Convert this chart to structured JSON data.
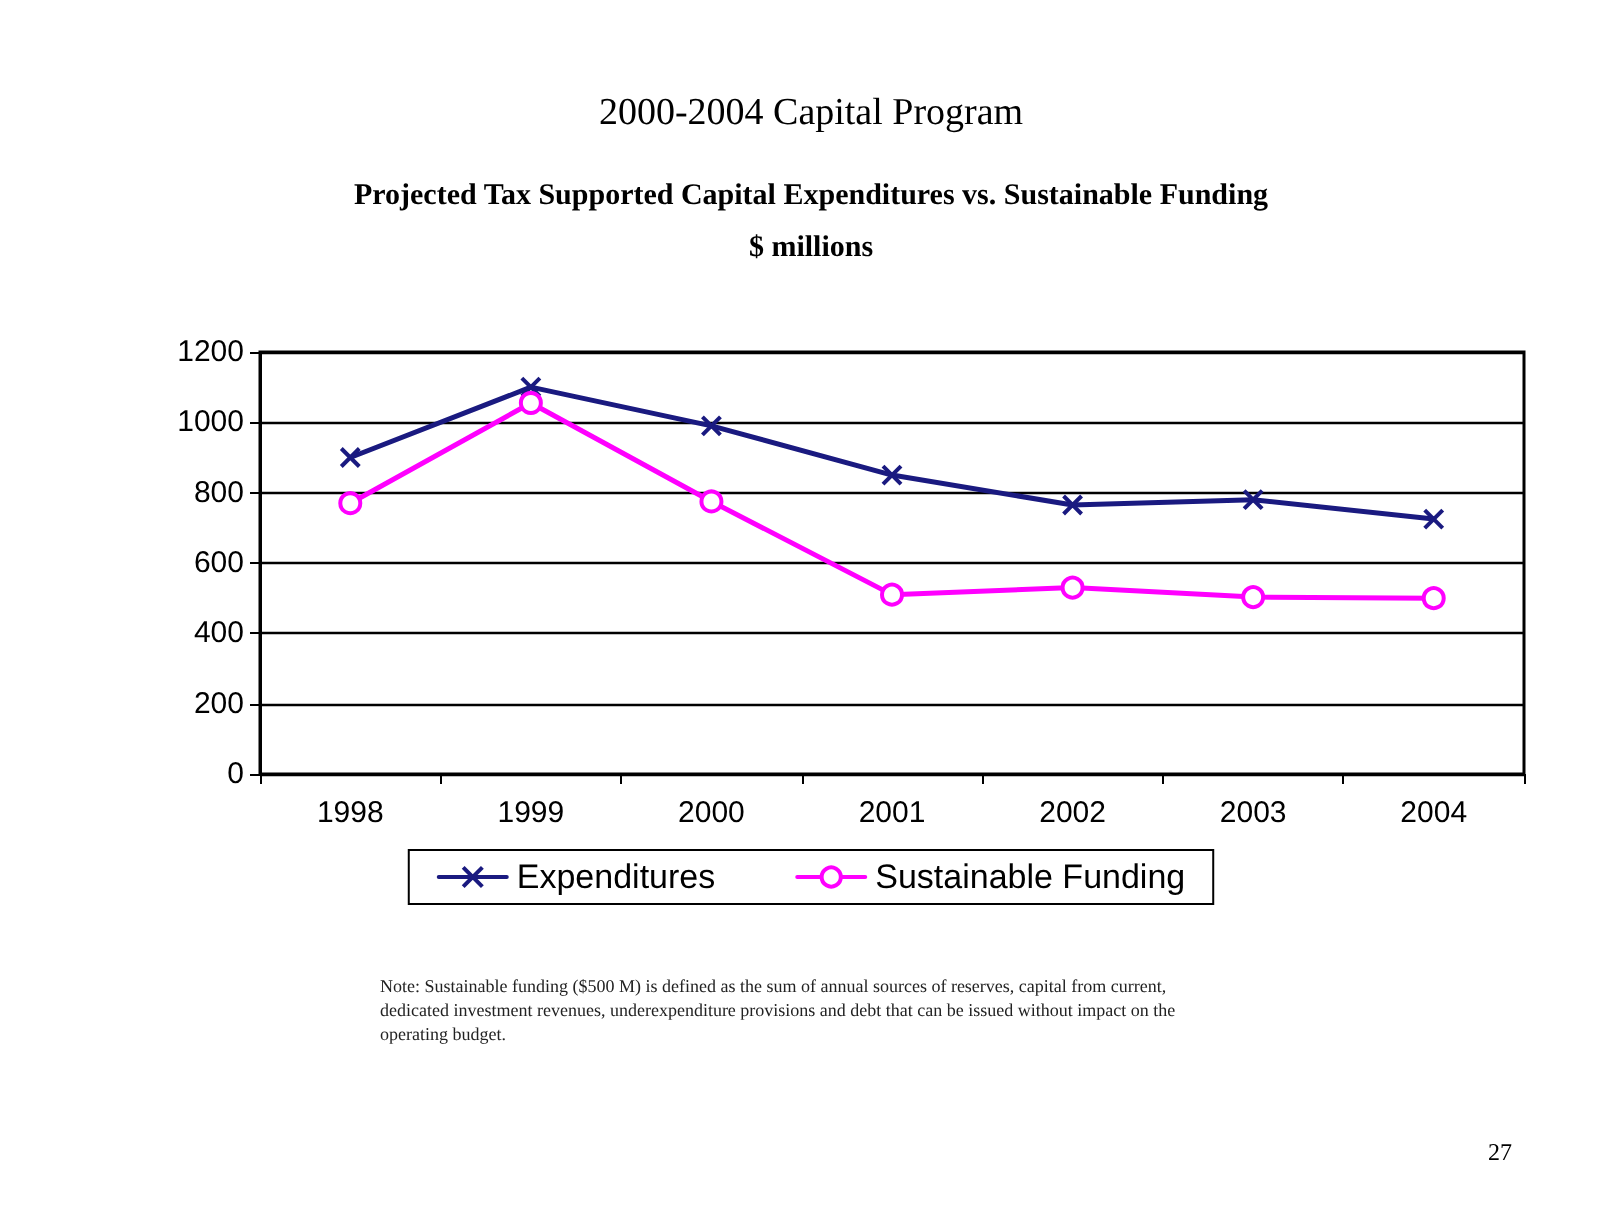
{
  "chart_data": {
    "type": "line",
    "title": "2000-2004 Capital Program",
    "subtitle": "Projected Tax Supported Capital Expenditures vs. Sustainable Funding\n$ millions",
    "categories": [
      "1998",
      "1999",
      "2000",
      "2001",
      "2002",
      "2003",
      "2004"
    ],
    "series": [
      {
        "name": "Expenditures",
        "color": "#1a1a80",
        "marker": "cross",
        "values": [
          900,
          1100,
          990,
          850,
          765,
          780,
          725
        ]
      },
      {
        "name": "Sustainable Funding",
        "color": "#ff00ff",
        "marker": "circle",
        "values": [
          770,
          1055,
          775,
          510,
          530,
          503,
          500
        ]
      }
    ],
    "ylim": [
      0,
      1200
    ],
    "yticks": [
      0,
      200,
      400,
      600,
      800,
      1000,
      1200
    ],
    "grid": "y",
    "legend": "bottom",
    "annotations": [
      "Note: Sustainable funding ($500 M) is defined as the sum of annual sources of reserves, capital from current, dedicated investment revenues, underexpenditure provisions and debt that can be issued without impact on the operating budget.",
      "27"
    ]
  }
}
